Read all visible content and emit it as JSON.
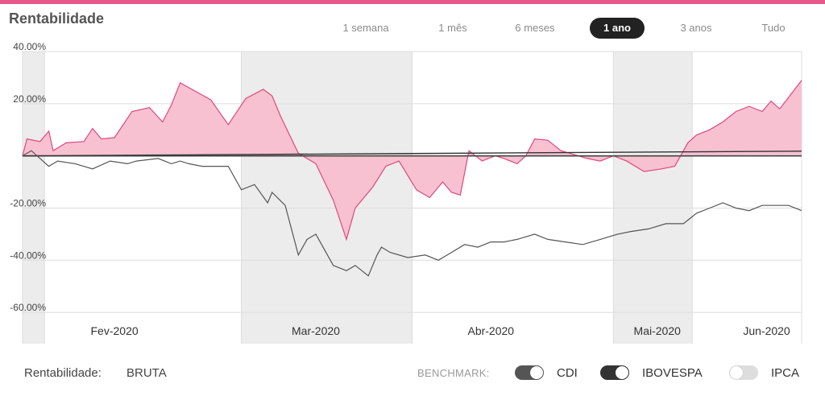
{
  "header": {
    "title": "Rentabilidade",
    "periods": [
      "1 semana",
      "1 mês",
      "6 meses",
      "1 ano",
      "3 anos",
      "Tudo"
    ],
    "active_period": "1 ano"
  },
  "footer": {
    "rent_label": "Rentabilidade:",
    "rent_value": "BRUTA",
    "benchmark_label": "BENCHMARK:",
    "toggles": [
      {
        "label": "CDI",
        "on": true
      },
      {
        "label": "IBOVESPA",
        "on": true
      },
      {
        "label": "IPCA",
        "on": false
      }
    ]
  },
  "colors": {
    "accent": "#e8578b",
    "fund_fill": "#f7c1d2",
    "fund_line": "#e0487d",
    "ibov_line": "#555555",
    "cdi_line": "#333333",
    "band": "#ececec",
    "toggle_on": "#555555",
    "toggle_on_dark": "#333333",
    "toggle_off": "#dddddd"
  },
  "chart_data": {
    "type": "area",
    "x_axis": "date",
    "ylim": [
      -72,
      40
    ],
    "y_ticks": [
      40,
      20,
      -20,
      -40,
      -60
    ],
    "y_tick_labels": [
      "40.00%",
      "20.00%",
      "-20.00%",
      "-40.00%",
      "-60.00%"
    ],
    "month_labels": [
      "Fev-2020",
      "Mar-2020",
      "Abr-2020",
      "Mai-2020",
      "Jun-2020"
    ],
    "x_range": [
      "2020-01-02",
      "2020-06-28"
    ],
    "month_bands": [
      {
        "from": "2020-01-02",
        "to": "2020-01-07",
        "shaded": true
      },
      {
        "from": "2020-01-07",
        "to": "2020-02-21",
        "shaded": false
      },
      {
        "from": "2020-02-21",
        "to": "2020-03-31",
        "shaded": true
      },
      {
        "from": "2020-03-31",
        "to": "2020-05-16",
        "shaded": false
      },
      {
        "from": "2020-05-16",
        "to": "2020-06-03",
        "shaded": true
      },
      {
        "from": "2020-06-03",
        "to": "2020-06-28",
        "shaded": false
      }
    ],
    "month_label_dates": [
      "2020-01-23",
      "2020-03-09",
      "2020-04-18",
      "2020-05-26",
      "2020-06-20"
    ],
    "series": [
      {
        "key": "fund",
        "name": "",
        "x": [
          "2020-01-02",
          "2020-01-03",
          "2020-01-06",
          "2020-01-08",
          "2020-01-09",
          "2020-01-12",
          "2020-01-16",
          "2020-01-18",
          "2020-01-20",
          "2020-01-23",
          "2020-01-27",
          "2020-01-31",
          "2020-02-03",
          "2020-02-05",
          "2020-02-07",
          "2020-02-14",
          "2020-02-18",
          "2020-02-22",
          "2020-02-26",
          "2020-02-28",
          "2020-03-01",
          "2020-03-05",
          "2020-03-09",
          "2020-03-13",
          "2020-03-16",
          "2020-03-18",
          "2020-03-22",
          "2020-03-25",
          "2020-03-28",
          "2020-04-01",
          "2020-04-04",
          "2020-04-07",
          "2020-04-09",
          "2020-04-11",
          "2020-04-13",
          "2020-04-16",
          "2020-04-19",
          "2020-04-21",
          "2020-04-24",
          "2020-04-26",
          "2020-04-28",
          "2020-05-01",
          "2020-05-04",
          "2020-05-08",
          "2020-05-10",
          "2020-05-13",
          "2020-05-16",
          "2020-05-19",
          "2020-05-23",
          "2020-05-27",
          "2020-05-30",
          "2020-06-02",
          "2020-06-04",
          "2020-06-07",
          "2020-06-10",
          "2020-06-13",
          "2020-06-16",
          "2020-06-19",
          "2020-06-21",
          "2020-06-23",
          "2020-06-28"
        ],
        "y": [
          0,
          6.5,
          5.5,
          9.5,
          2,
          5,
          5.5,
          10.5,
          6.5,
          7,
          17,
          18.5,
          13,
          19.5,
          28,
          21.5,
          12,
          22,
          25.5,
          23,
          15,
          1,
          -3,
          -17,
          -32,
          -20,
          -12,
          -4,
          -2,
          -13,
          -16,
          -10,
          -14,
          -15,
          2,
          -2,
          0,
          -1,
          -3,
          0,
          6.5,
          6,
          2,
          0,
          -1,
          -2,
          0,
          -2,
          -6,
          -5,
          -4,
          5,
          8,
          10,
          13,
          17,
          19,
          17,
          21,
          18,
          29
        ]
      },
      {
        "key": "ibov",
        "name": "IBOVESPA",
        "x": [
          "2020-01-02",
          "2020-01-04",
          "2020-01-06",
          "2020-01-08",
          "2020-01-10",
          "2020-01-14",
          "2020-01-18",
          "2020-01-22",
          "2020-01-26",
          "2020-01-28",
          "2020-02-02",
          "2020-02-05",
          "2020-02-07",
          "2020-02-09",
          "2020-02-12",
          "2020-02-18",
          "2020-02-21",
          "2020-02-24",
          "2020-02-27",
          "2020-02-28",
          "2020-03-02",
          "2020-03-05",
          "2020-03-07",
          "2020-03-09",
          "2020-03-11",
          "2020-03-13",
          "2020-03-16",
          "2020-03-18",
          "2020-03-21",
          "2020-03-23",
          "2020-03-24",
          "2020-03-26",
          "2020-03-30",
          "2020-04-03",
          "2020-04-06",
          "2020-04-09",
          "2020-04-12",
          "2020-04-15",
          "2020-04-18",
          "2020-04-21",
          "2020-04-24",
          "2020-04-28",
          "2020-05-01",
          "2020-05-05",
          "2020-05-09",
          "2020-05-13",
          "2020-05-17",
          "2020-05-20",
          "2020-05-24",
          "2020-05-28",
          "2020-06-01",
          "2020-06-04",
          "2020-06-07",
          "2020-06-10",
          "2020-06-13",
          "2020-06-16",
          "2020-06-19",
          "2020-06-22",
          "2020-06-25",
          "2020-06-28"
        ],
        "y": [
          0,
          2,
          -1,
          -4,
          -2,
          -3,
          -5,
          -2,
          -3,
          -2,
          -1,
          -3,
          -2,
          -3,
          -4,
          -4,
          -13,
          -11,
          -18,
          -14,
          -19,
          -38,
          -32,
          -30,
          -36,
          -42,
          -44,
          -42,
          -46,
          -38,
          -35,
          -37,
          -39,
          -38,
          -40,
          -37,
          -34,
          -35,
          -33,
          -33,
          -32,
          -30,
          -32,
          -33,
          -34,
          -32,
          -30,
          -29,
          -28,
          -26,
          -26,
          -22,
          -20,
          -18,
          -20,
          -21,
          -19,
          -19,
          -19,
          -21
        ]
      },
      {
        "key": "cdi",
        "name": "CDI",
        "x": [
          "2020-01-02",
          "2020-06-28"
        ],
        "y": [
          0,
          1.8
        ]
      }
    ]
  }
}
